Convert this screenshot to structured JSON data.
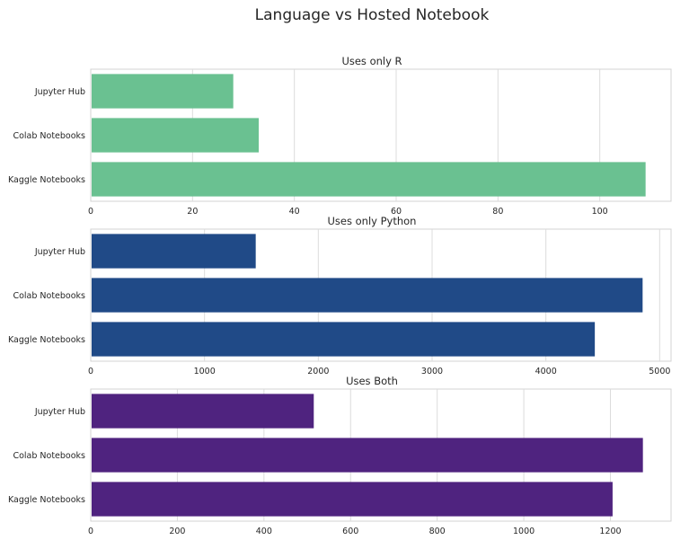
{
  "figure_title": "Language vs Hosted Notebook",
  "chart_data": [
    {
      "type": "bar",
      "orientation": "horizontal",
      "title": "Uses only R",
      "categories": [
        "Jupyter Hub",
        "Colab Notebooks",
        "Kaggle Notebooks"
      ],
      "values": [
        28,
        33,
        109
      ],
      "xlim": [
        0,
        114
      ],
      "xticks": [
        0,
        20,
        40,
        60,
        80,
        100
      ],
      "color": "#6ac191",
      "grid": true
    },
    {
      "type": "bar",
      "orientation": "horizontal",
      "title": "Uses only Python",
      "categories": [
        "Jupyter Hub",
        "Colab Notebooks",
        "Kaggle Notebooks"
      ],
      "values": [
        1450,
        4850,
        4430
      ],
      "xlim": [
        0,
        5100
      ],
      "xticks": [
        0,
        1000,
        2000,
        3000,
        4000,
        5000
      ],
      "color": "#204a87",
      "grid": true
    },
    {
      "type": "bar",
      "orientation": "horizontal",
      "title": "Uses Both",
      "categories": [
        "Jupyter Hub",
        "Colab Notebooks",
        "Kaggle Notebooks"
      ],
      "values": [
        515,
        1275,
        1205
      ],
      "xlim": [
        0,
        1340
      ],
      "xticks": [
        0,
        200,
        400,
        600,
        800,
        1000,
        1200
      ],
      "color": "#4f237f",
      "grid": true
    }
  ]
}
